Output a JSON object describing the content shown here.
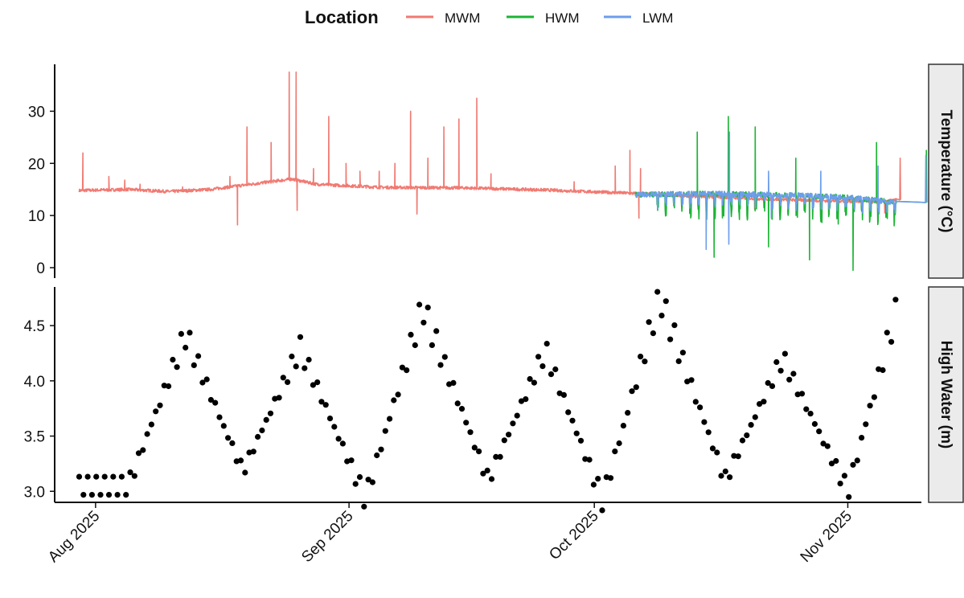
{
  "chart_data": {
    "type": "line",
    "legend": {
      "title": "Location",
      "placement": "top",
      "entries": [
        {
          "name": "MWM",
          "color": "#F07A72"
        },
        {
          "name": "HWM",
          "color": "#1DB436"
        },
        {
          "name": "LWM",
          "color": "#6E9EEB"
        }
      ]
    },
    "x_axis": {
      "type": "date",
      "range": [
        "2025-07-27",
        "2025-11-10"
      ],
      "ticks": [
        {
          "date": "2025-08-01",
          "label": "Aug 2025"
        },
        {
          "date": "2025-09-01",
          "label": "Sep 2025"
        },
        {
          "date": "2025-10-01",
          "label": "Oct 2025"
        },
        {
          "date": "2025-11-01",
          "label": "Nov 2025"
        }
      ]
    },
    "panels": [
      {
        "strip_label": "Temperature (°C)",
        "type": "line",
        "ylim": [
          -2,
          39
        ],
        "yticks": [
          0,
          10,
          20,
          30
        ],
        "series": [
          {
            "name": "MWM",
            "color": "#F07A72",
            "base_points": [
              [
                "2025-07-30",
                14.8
              ],
              [
                "2025-08-05",
                15.0
              ],
              [
                "2025-08-10",
                14.6
              ],
              [
                "2025-08-15",
                15.0
              ],
              [
                "2025-08-20",
                16.0
              ],
              [
                "2025-08-25",
                17.0
              ],
              [
                "2025-08-28",
                16.0
              ],
              [
                "2025-09-05",
                15.4
              ],
              [
                "2025-09-15",
                15.3
              ],
              [
                "2025-09-25",
                14.9
              ],
              [
                "2025-10-05",
                14.3
              ],
              [
                "2025-10-15",
                13.6
              ],
              [
                "2025-10-25",
                13.0
              ],
              [
                "2025-11-05",
                12.6
              ],
              [
                "2025-11-07",
                13.0
              ]
            ],
            "spikes": [
              [
                "2025-07-30",
                22
              ],
              [
                "2025-08-02",
                17.5
              ],
              [
                "2025-08-04",
                16.8
              ],
              [
                "2025-08-06",
                16.0
              ],
              [
                "2025-08-11",
                15.5
              ],
              [
                "2025-08-17",
                17.5
              ],
              [
                "2025-08-18",
                8.2
              ],
              [
                "2025-08-19",
                27
              ],
              [
                "2025-08-22",
                24
              ],
              [
                "2025-08-24",
                37.5
              ],
              [
                "2025-08-25",
                11
              ],
              [
                "2025-08-25",
                37.5
              ],
              [
                "2025-08-27",
                19
              ],
              [
                "2025-08-29",
                29
              ],
              [
                "2025-08-31",
                20
              ],
              [
                "2025-09-02",
                18.5
              ],
              [
                "2025-09-04",
                18.5
              ],
              [
                "2025-09-06",
                20
              ],
              [
                "2025-09-08",
                30
              ],
              [
                "2025-09-09",
                10.3
              ],
              [
                "2025-09-10",
                21
              ],
              [
                "2025-09-12",
                27
              ],
              [
                "2025-09-14",
                28.5
              ],
              [
                "2025-09-16",
                32.5
              ],
              [
                "2025-09-18",
                18
              ],
              [
                "2025-09-28",
                16.5
              ],
              [
                "2025-10-03",
                19.5
              ],
              [
                "2025-10-05",
                22.5
              ],
              [
                "2025-10-06",
                9.5
              ],
              [
                "2025-10-06",
                19
              ],
              [
                "2025-10-20",
                11.2
              ],
              [
                "2025-11-05",
                10.5
              ],
              [
                "2025-11-07",
                21
              ]
            ]
          },
          {
            "name": "HWM",
            "color": "#1DB436",
            "start": "2025-10-06",
            "end": "2025-11-07",
            "base_points": [
              [
                "2025-10-06",
                14.0
              ],
              [
                "2025-10-15",
                14.2
              ],
              [
                "2025-10-25",
                13.9
              ],
              [
                "2025-11-01",
                13.5
              ],
              [
                "2025-11-07",
                12.5
              ]
            ],
            "spikes": [
              [
                "2025-10-13",
                26
              ],
              [
                "2025-10-17",
                29
              ],
              [
                "2025-10-20",
                27
              ],
              [
                "2025-10-25",
                21
              ],
              [
                "2025-11-04",
                24
              ],
              [
                "2025-11-10",
                22.5
              ],
              [
                "2025-10-15",
                2.0
              ],
              [
                "2025-10-22",
                4.0
              ],
              [
                "2025-10-27",
                1.5
              ],
              [
                "2025-11-01",
                -0.5
              ]
            ]
          },
          {
            "name": "LWM",
            "color": "#6E9EEB",
            "start": "2025-10-06",
            "end": "2025-11-07",
            "base_points": [
              [
                "2025-10-06",
                14.0
              ],
              [
                "2025-10-15",
                14.2
              ],
              [
                "2025-10-25",
                13.9
              ],
              [
                "2025-11-01",
                13.5
              ],
              [
                "2025-11-07",
                12.5
              ]
            ],
            "spikes": [
              [
                "2025-10-17",
                26
              ],
              [
                "2025-10-22",
                18.5
              ],
              [
                "2025-10-28",
                18.5
              ],
              [
                "2025-11-04",
                19.5
              ],
              [
                "2025-11-10",
                21.5
              ],
              [
                "2025-10-14",
                3.5
              ],
              [
                "2025-10-17",
                4.5
              ],
              [
                "2025-10-22",
                9.5
              ]
            ]
          }
        ]
      },
      {
        "strip_label": "High Water (m)",
        "type": "scatter",
        "ylim": [
          2.9,
          4.85
        ],
        "yticks": [
          3.0,
          3.5,
          4.0,
          4.5
        ],
        "series": [
          {
            "name": "",
            "color": "#000000",
            "start": "2025-07-30",
            "end": "2025-11-07",
            "high_water_peaks": [
              [
                "2025-08-12",
                4.42
              ],
              [
                "2025-08-26",
                4.3
              ],
              [
                "2025-09-10",
                4.67
              ],
              [
                "2025-09-25",
                4.28
              ],
              [
                "2025-10-09",
                4.76
              ],
              [
                "2025-10-24",
                4.21
              ],
              [
                "2025-11-07",
                4.66
              ]
            ],
            "high_water_troughs": [
              [
                "2025-08-05",
                3.05
              ],
              [
                "2025-08-19",
                3.18
              ],
              [
                "2025-09-03",
                2.93
              ],
              [
                "2025-09-18",
                3.1
              ],
              [
                "2025-10-02",
                2.92
              ],
              [
                "2025-10-17",
                3.1
              ],
              [
                "2025-11-01",
                3.0
              ]
            ]
          }
        ]
      }
    ]
  }
}
